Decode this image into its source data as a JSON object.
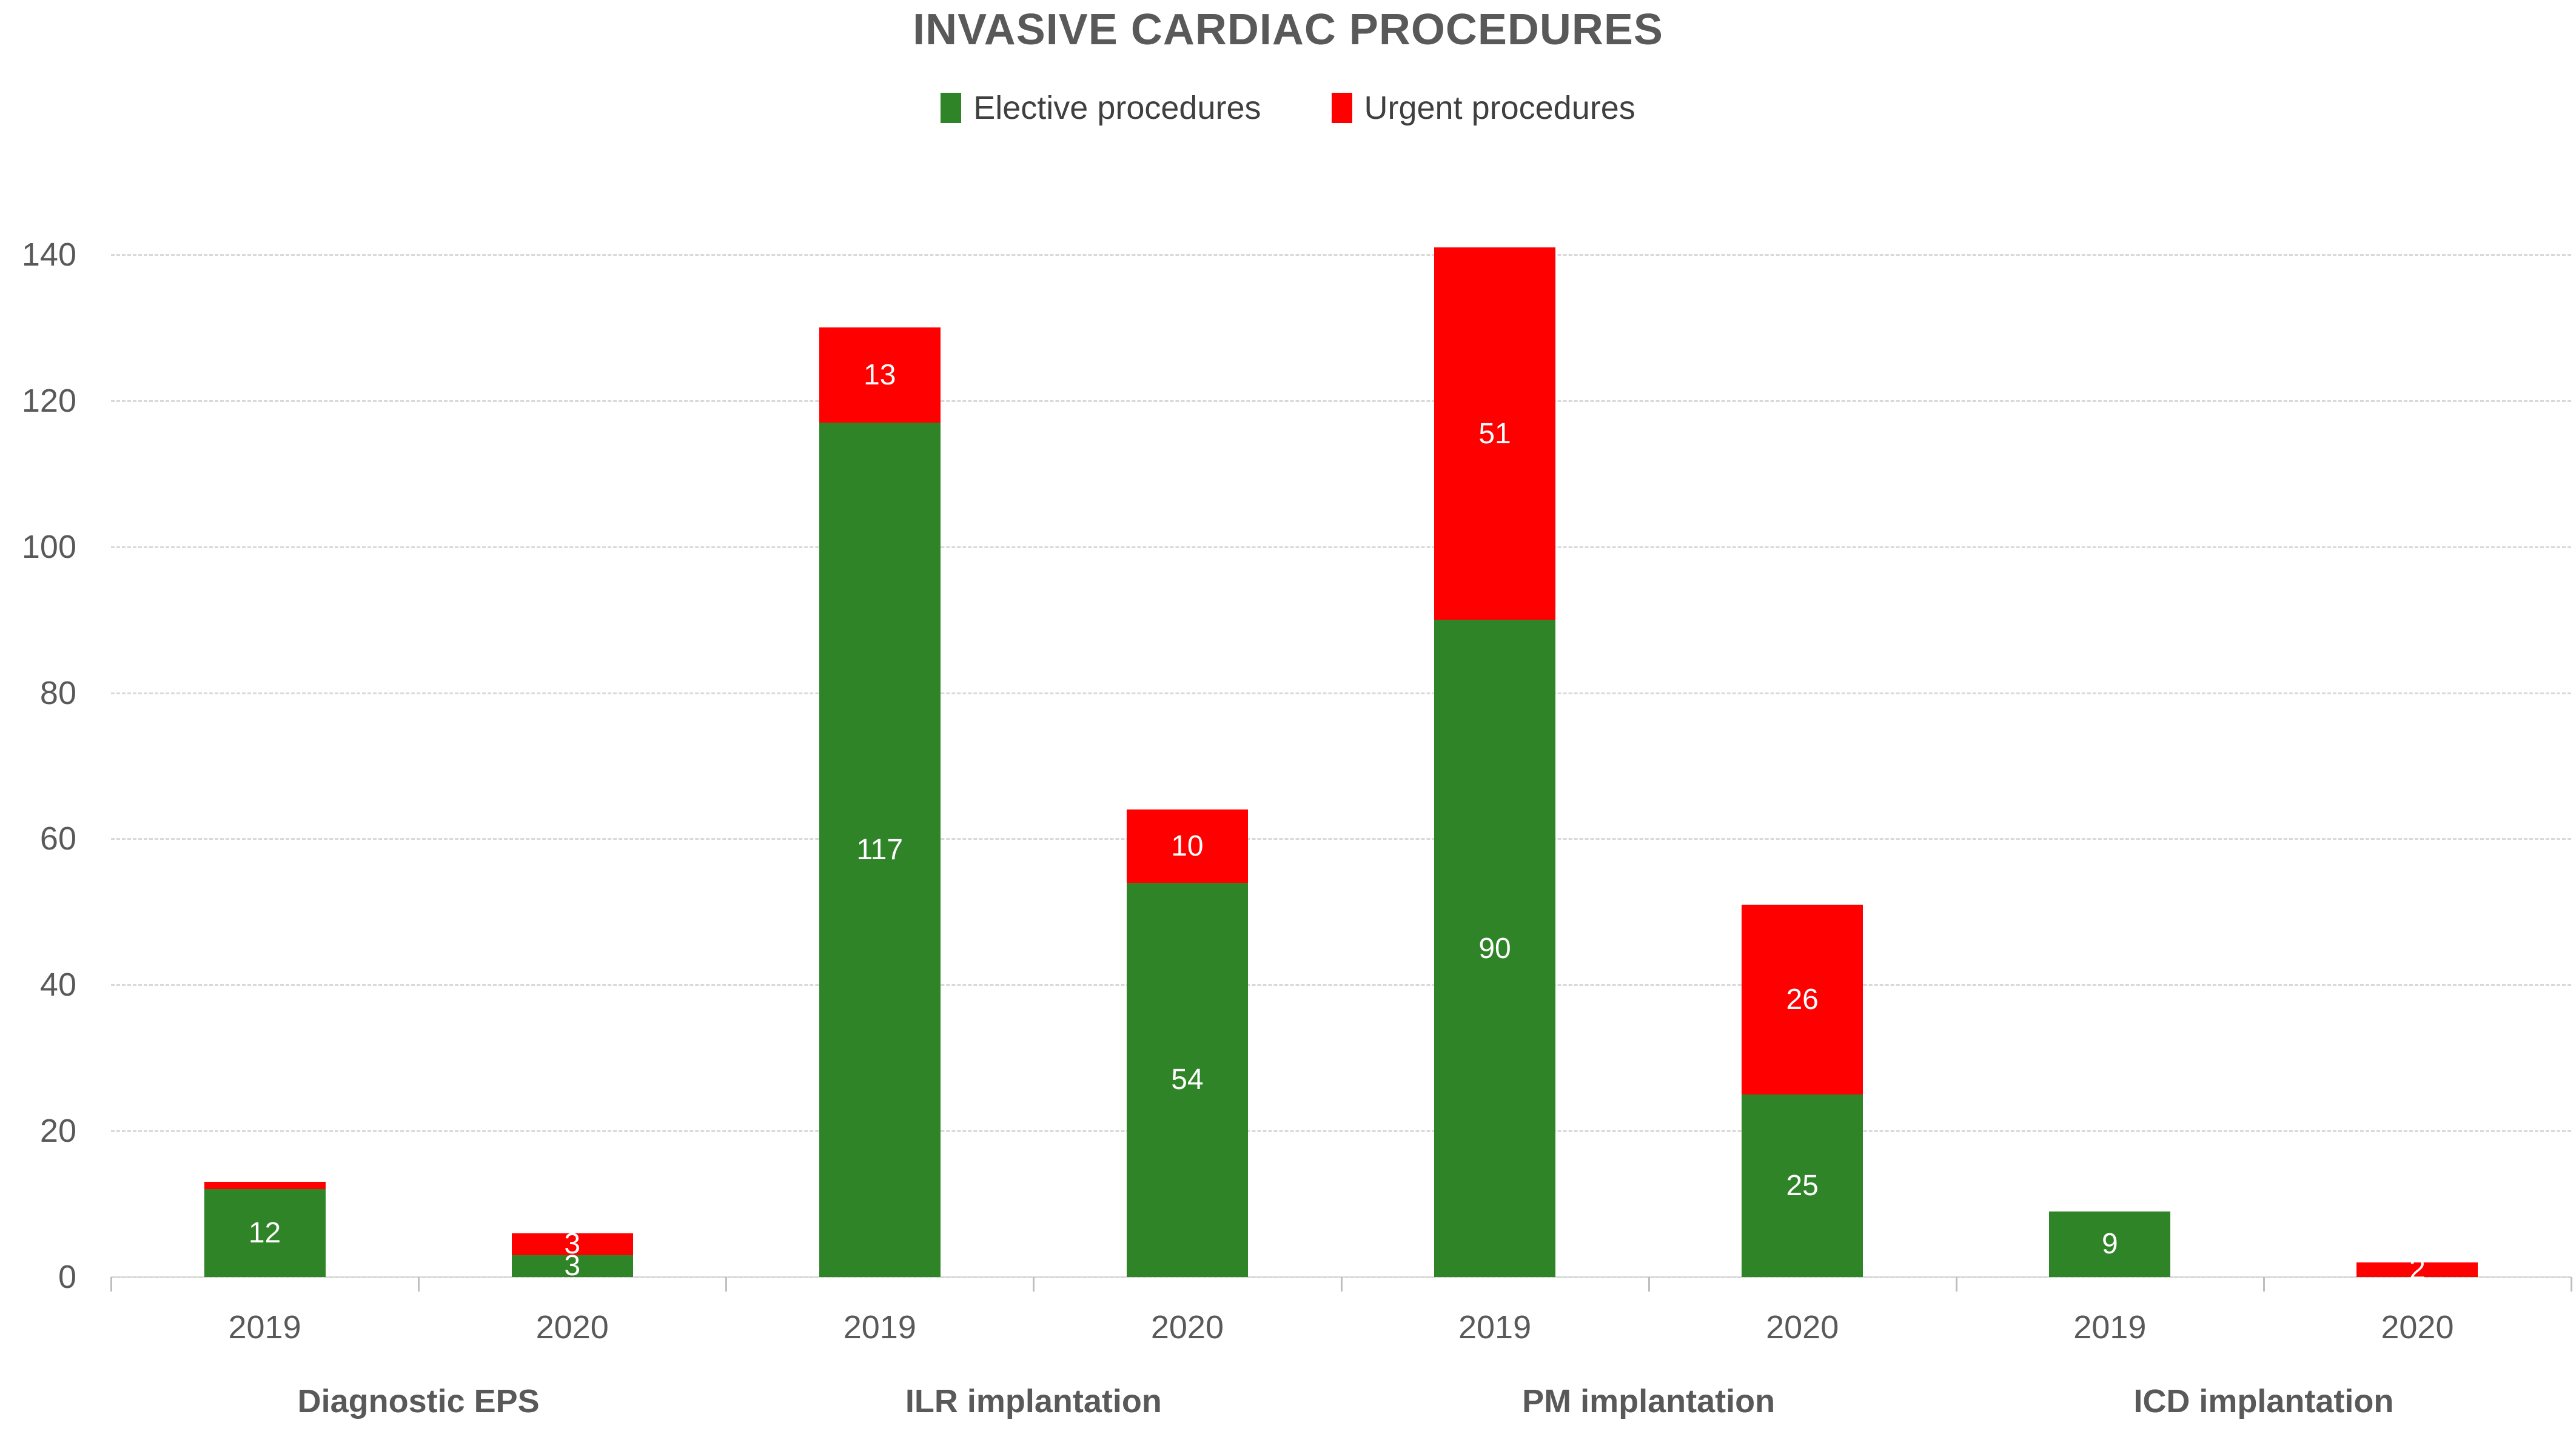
{
  "chart_data": {
    "type": "bar",
    "stacked": true,
    "title": "INVASIVE CARDIAC PROCEDURES",
    "legend_position": "top",
    "grid": "horizontal-dashed",
    "groups": [
      "Diagnostic EPS",
      "ILR implantation",
      "PM implantation",
      "ICD implantation"
    ],
    "categories": [
      "2019",
      "2020",
      "2019",
      "2020",
      "2019",
      "2020",
      "2019",
      "2020"
    ],
    "series": [
      {
        "name": "Elective procedures",
        "color": "#2F8428",
        "values": [
          12,
          3,
          117,
          54,
          90,
          25,
          9,
          0
        ],
        "data_labels": [
          "12",
          "3",
          "117",
          "54",
          "90",
          "25",
          "9",
          ""
        ]
      },
      {
        "name": "Urgent procedures",
        "color": "#FF0000",
        "values": [
          1,
          3,
          13,
          10,
          51,
          26,
          0,
          2
        ],
        "data_labels": [
          "",
          "3",
          "13",
          "10",
          "51",
          "26",
          "",
          "2"
        ]
      }
    ],
    "ylim": [
      0,
      140
    ],
    "yticks": [
      0,
      20,
      40,
      60,
      80,
      100,
      120,
      140
    ],
    "xlabel": "",
    "ylabel": ""
  },
  "style": {
    "title_color": "#595959",
    "axis_text_color": "#595959",
    "legend_text_color": "#3F3F3F",
    "gridline_color": "#D9D9D9",
    "axis_line_color": "#D5D5D5",
    "tick_color": "#BFBFBF",
    "data_label_color": "#FFFFFF",
    "background": "#FFFFFF"
  }
}
